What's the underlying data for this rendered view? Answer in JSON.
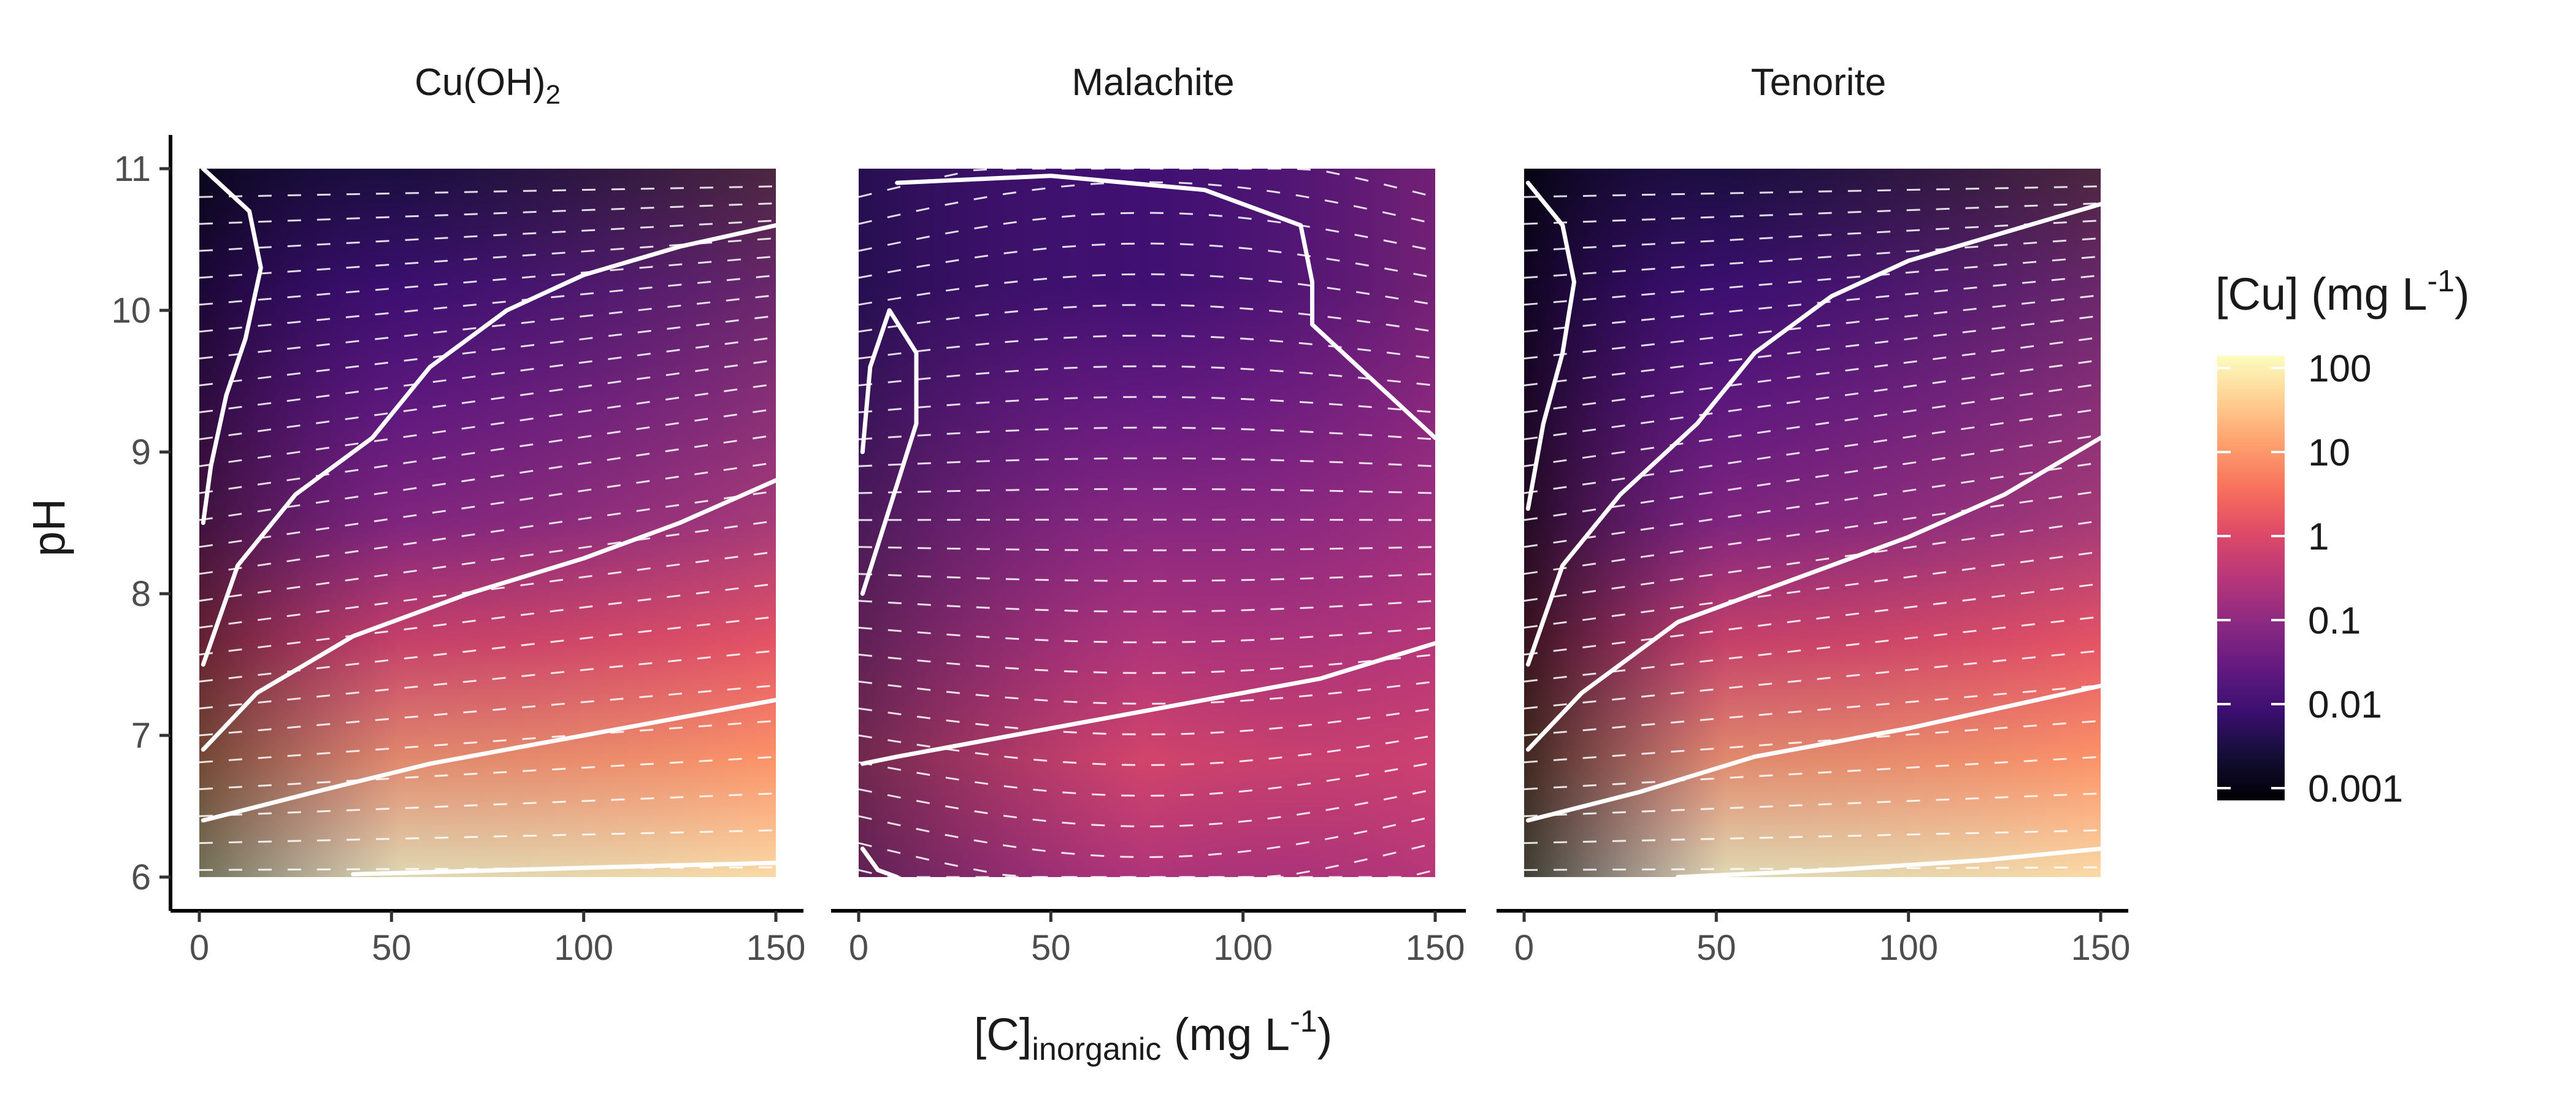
{
  "chart_data": [
    {
      "type": "heatmap",
      "title": "Cu(OH)2",
      "title_main": "Cu(OH)",
      "title_sub": "2",
      "x": {
        "lim": [
          0,
          150
        ],
        "ticks": [
          0,
          50,
          100,
          150
        ],
        "tick_labels": [
          "0",
          "50",
          "100",
          "150"
        ]
      },
      "y": {
        "lim": [
          6,
          11
        ],
        "ticks": [
          6,
          7,
          8,
          9,
          10,
          11
        ],
        "tick_labels": [
          "6",
          "7",
          "8",
          "9",
          "10",
          "11"
        ]
      },
      "contours": [
        {
          "level": 0.01,
          "points": [
            [
              1,
              11
            ],
            [
              13,
              10.7
            ],
            [
              16,
              10.3
            ],
            [
              12,
              9.8
            ],
            [
              7,
              9.4
            ],
            [
              3,
              8.9
            ],
            [
              1,
              8.5
            ]
          ]
        },
        {
          "level": 0.1,
          "points": [
            [
              1,
              7.5
            ],
            [
              10,
              8.2
            ],
            [
              25,
              8.7
            ],
            [
              45,
              9.1
            ],
            [
              60,
              9.6
            ],
            [
              80,
              10.0
            ],
            [
              100,
              10.25
            ],
            [
              125,
              10.45
            ],
            [
              150,
              10.6
            ]
          ]
        },
        {
          "level": 1,
          "points": [
            [
              1,
              6.9
            ],
            [
              15,
              7.3
            ],
            [
              40,
              7.7
            ],
            [
              70,
              8.0
            ],
            [
              100,
              8.25
            ],
            [
              125,
              8.5
            ],
            [
              150,
              8.8
            ]
          ]
        },
        {
          "level": 10,
          "points": [
            [
              1,
              6.4
            ],
            [
              30,
              6.6
            ],
            [
              60,
              6.8
            ],
            [
              100,
              7.0
            ],
            [
              150,
              7.25
            ]
          ]
        },
        {
          "level": 100,
          "points": [
            [
              40,
              6.02
            ],
            [
              80,
              6.05
            ],
            [
              120,
              6.08
            ],
            [
              150,
              6.1
            ]
          ]
        }
      ]
    },
    {
      "type": "heatmap",
      "title": "Malachite",
      "title_main": "Malachite",
      "title_sub": "",
      "x": {
        "lim": [
          0,
          150
        ],
        "ticks": [
          0,
          50,
          100,
          150
        ],
        "tick_labels": [
          "0",
          "50",
          "100",
          "150"
        ]
      },
      "y": {
        "lim": [
          6,
          11
        ],
        "ticks": [
          6,
          7,
          8,
          9,
          10,
          11
        ],
        "tick_labels": [
          "6",
          "7",
          "8",
          "9",
          "10",
          "11"
        ]
      },
      "contours": [
        {
          "level": 0.01,
          "points": [
            [
              1,
              8.0
            ],
            [
              8,
              8.6
            ],
            [
              15,
              9.2
            ],
            [
              15,
              9.7
            ],
            [
              8,
              10.0
            ],
            [
              3,
              9.6
            ],
            [
              1,
              9.0
            ]
          ]
        },
        {
          "level": 0.1,
          "points": [
            [
              10,
              10.9
            ],
            [
              50,
              10.95
            ],
            [
              90,
              10.85
            ],
            [
              115,
              10.6
            ],
            [
              118,
              10.2
            ],
            [
              118,
              9.9
            ],
            [
              130,
              9.6
            ],
            [
              150,
              9.1
            ]
          ]
        },
        {
          "level": 0.1,
          "points": [
            [
              1,
              6.8
            ],
            [
              10,
              6.85
            ],
            [
              40,
              7.0
            ],
            [
              80,
              7.2
            ],
            [
              120,
              7.4
            ],
            [
              150,
              7.65
            ]
          ]
        },
        {
          "level": 1,
          "points": [
            [
              1,
              6.2
            ],
            [
              5,
              6.05
            ],
            [
              10,
              6.0
            ]
          ]
        }
      ]
    },
    {
      "type": "heatmap",
      "title": "Tenorite",
      "title_main": "Tenorite",
      "title_sub": "",
      "x": {
        "lim": [
          0,
          150
        ],
        "ticks": [
          0,
          50,
          100,
          150
        ],
        "tick_labels": [
          "0",
          "50",
          "100",
          "150"
        ]
      },
      "y": {
        "lim": [
          6,
          11
        ],
        "ticks": [
          6,
          7,
          8,
          9,
          10,
          11
        ],
        "tick_labels": [
          "6",
          "7",
          "8",
          "9",
          "10",
          "11"
        ]
      },
      "contours": [
        {
          "level": 0.001,
          "points": [
            [
              1,
              10.9
            ],
            [
              10,
              10.6
            ],
            [
              13,
              10.2
            ],
            [
              10,
              9.7
            ],
            [
              5,
              9.2
            ],
            [
              1,
              8.6
            ]
          ]
        },
        {
          "level": 0.01,
          "points": [
            [
              1,
              7.5
            ],
            [
              10,
              8.2
            ],
            [
              25,
              8.7
            ],
            [
              45,
              9.2
            ],
            [
              60,
              9.7
            ],
            [
              80,
              10.1
            ],
            [
              100,
              10.35
            ],
            [
              125,
              10.55
            ],
            [
              150,
              10.75
            ]
          ]
        },
        {
          "level": 0.1,
          "points": [
            [
              1,
              6.9
            ],
            [
              15,
              7.3
            ],
            [
              40,
              7.8
            ],
            [
              70,
              8.1
            ],
            [
              100,
              8.4
            ],
            [
              125,
              8.7
            ],
            [
              150,
              9.1
            ]
          ]
        },
        {
          "level": 1,
          "points": [
            [
              1,
              6.4
            ],
            [
              30,
              6.6
            ],
            [
              60,
              6.85
            ],
            [
              100,
              7.05
            ],
            [
              150,
              7.35
            ]
          ]
        },
        {
          "level": 10,
          "points": [
            [
              40,
              6.0
            ],
            [
              80,
              6.05
            ],
            [
              120,
              6.12
            ],
            [
              150,
              6.2
            ]
          ]
        }
      ]
    }
  ],
  "axes": {
    "y_label": "pH",
    "x_label_prefix": "[C]",
    "x_label_sub": "inorganic",
    "x_label_unit": " (mg L",
    "x_label_exp": "-1",
    "x_label_close": ")"
  },
  "legend": {
    "title_main": "[Cu] (mg L",
    "title_exp": "-1",
    "title_close": ")",
    "scale": "log10",
    "range": [
      0.001,
      100
    ],
    "labels": [
      "100",
      "10",
      "1",
      "0.1",
      "0.01",
      "0.001"
    ],
    "values": [
      100,
      10,
      1,
      0.1,
      0.01,
      0.001
    ],
    "palette": [
      "#000004",
      "#140e36",
      "#3b0f70",
      "#641a80",
      "#8c2981",
      "#b73779",
      "#de4968",
      "#f7705c",
      "#fe9f6d",
      "#fecf92",
      "#fcfdbf"
    ]
  }
}
